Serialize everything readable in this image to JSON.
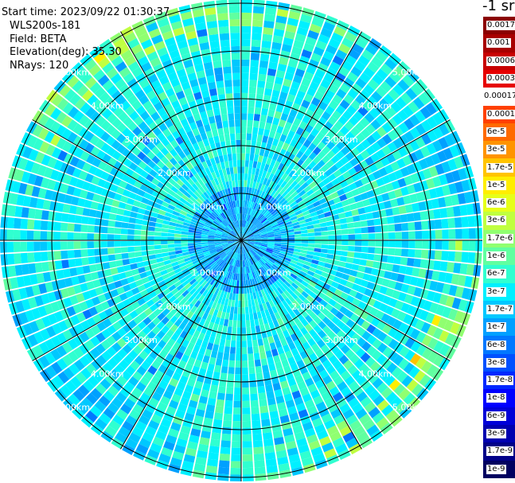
{
  "info": {
    "start_time": "Start time: 2023/09/22 01:30:37",
    "instrument": "WLS200s-181",
    "field": "Field: BETA",
    "elevation": "Elevation(deg): 35.30",
    "nrays": "NRays: 120"
  },
  "unit_label": "-1 sr",
  "range_labels": [
    "1.00km",
    "2.00km",
    "3.00km",
    "4.00km",
    "5.00km"
  ],
  "colorbar": [
    {
      "label": "0.0017",
      "color": "#8b0000"
    },
    {
      "label": "0.001",
      "color": "#a80000"
    },
    {
      "label": "0.0006",
      "color": "#c80000"
    },
    {
      "label": "0.0003",
      "color": "#e60000"
    },
    {
      "label": "0.00017",
      "color": "#ffffff"
    },
    {
      "label": "0.0001",
      "color": "#ff4000"
    },
    {
      "label": "6e-5",
      "color": "#ff6a00"
    },
    {
      "label": "3e-5",
      "color": "#ff9400"
    },
    {
      "label": "1.7e-5",
      "color": "#ffc400"
    },
    {
      "label": "1e-5",
      "color": "#ffee00"
    },
    {
      "label": "6e-6",
      "color": "#e6ff1a"
    },
    {
      "label": "3e-6",
      "color": "#c0ff40"
    },
    {
      "label": "1.7e-6",
      "color": "#90ff70"
    },
    {
      "label": "1e-6",
      "color": "#60ffa0"
    },
    {
      "label": "6e-7",
      "color": "#30ffd0"
    },
    {
      "label": "3e-7",
      "color": "#00f0ff"
    },
    {
      "label": "1.7e-7",
      "color": "#00c8ff"
    },
    {
      "label": "1e-7",
      "color": "#00a0ff"
    },
    {
      "label": "6e-8",
      "color": "#0078ff"
    },
    {
      "label": "3e-8",
      "color": "#0050ff"
    },
    {
      "label": "1.7e-8",
      "color": "#0028ff"
    },
    {
      "label": "1e-8",
      "color": "#0000ff"
    },
    {
      "label": "6e-9",
      "color": "#0000d8"
    },
    {
      "label": "3e-9",
      "color": "#0000b0"
    },
    {
      "label": "1.7e-9",
      "color": "#000088"
    },
    {
      "label": "1e-9",
      "color": "#000060"
    }
  ]
}
